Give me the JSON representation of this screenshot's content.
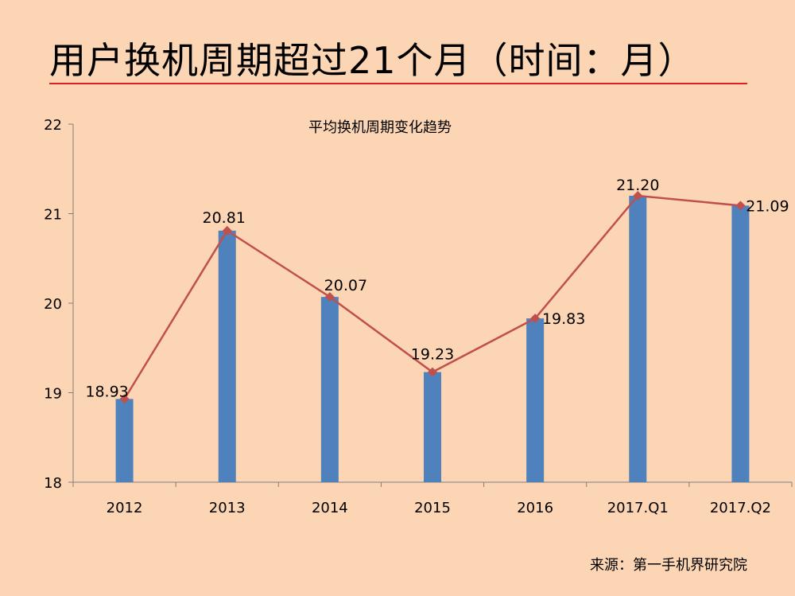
{
  "slide": {
    "title": "用户换机周期超过21个月（时间：月）",
    "source": "来源：第一手机界研究院"
  },
  "colors": {
    "background": "#FCD5B4",
    "bar": "#4F81BD",
    "line": "#C0504D",
    "rule": "#E02020",
    "axis": "#808080"
  },
  "chart_data": {
    "type": "bar",
    "title": "平均换机周期变化趋势",
    "categories": [
      "2012",
      "2013",
      "2014",
      "2015",
      "2016",
      "2017.Q1",
      "2017.Q2"
    ],
    "values": [
      18.93,
      20.81,
      20.07,
      19.23,
      19.83,
      21.2,
      21.09
    ],
    "data_labels": [
      "18.93",
      "20.81",
      "20.07",
      "19.23",
      "19.83",
      "21.20",
      "21.09"
    ],
    "overlay": {
      "type": "line",
      "marker": "diamond",
      "values": [
        18.93,
        20.81,
        20.07,
        19.23,
        19.83,
        21.2,
        21.09
      ]
    },
    "ylim": [
      18,
      22
    ],
    "yticks": [
      18,
      19,
      20,
      21,
      22
    ],
    "ytick_labels": [
      "18",
      "19",
      "20",
      "21",
      "22"
    ],
    "grid": false,
    "legend": "none",
    "xlabel": "",
    "ylabel": ""
  }
}
